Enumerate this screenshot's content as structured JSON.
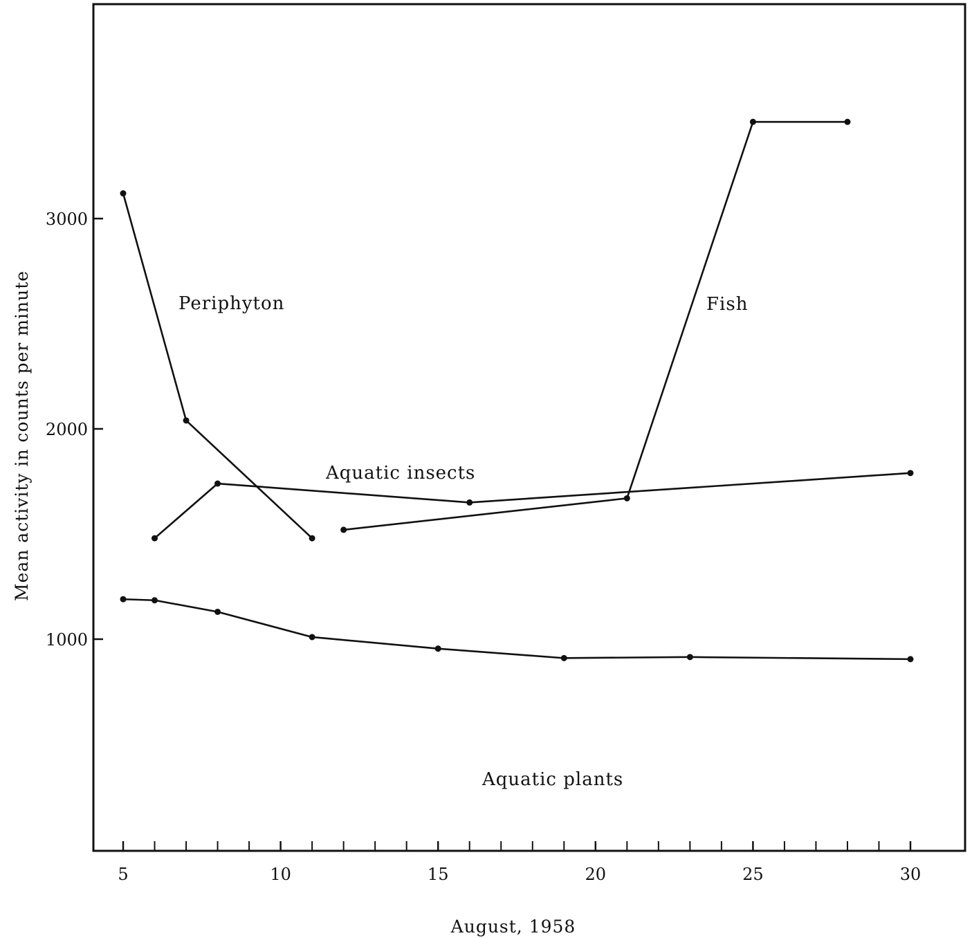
{
  "chart_data": {
    "type": "line",
    "xlabel": "August, 1958",
    "ylabel": "Mean activity in counts per minute",
    "xlim": [
      4.0,
      31.5
    ],
    "ylim": [
      500,
      3500
    ],
    "x_ticks": [
      5,
      10,
      15,
      20,
      25,
      30
    ],
    "x_minor_ticks": [
      6,
      7,
      8,
      9,
      11,
      12,
      13,
      14,
      16,
      17,
      18,
      19,
      21,
      22,
      23,
      24,
      26,
      27,
      28,
      29
    ],
    "y_ticks": [
      1000,
      2000,
      3000
    ],
    "grid": false,
    "legend": "none (series labelled directly on the plot)",
    "series": [
      {
        "name": "Periphyton",
        "x": [
          5,
          7,
          11
        ],
        "y": [
          3120,
          2040,
          1480
        ]
      },
      {
        "name": "Aquatic insects",
        "x": [
          6,
          8,
          16,
          30
        ],
        "y": [
          1480,
          1740,
          1650,
          1790
        ]
      },
      {
        "name": "Fish",
        "x": [
          12,
          21,
          25,
          28
        ],
        "y": [
          1520,
          1670,
          3460,
          3460
        ]
      },
      {
        "name": "Aquatic plants",
        "x": [
          5,
          6,
          8,
          11,
          15,
          19,
          23,
          30
        ],
        "y": [
          1190,
          1185,
          1130,
          1010,
          955,
          910,
          915,
          905
        ]
      }
    ]
  }
}
